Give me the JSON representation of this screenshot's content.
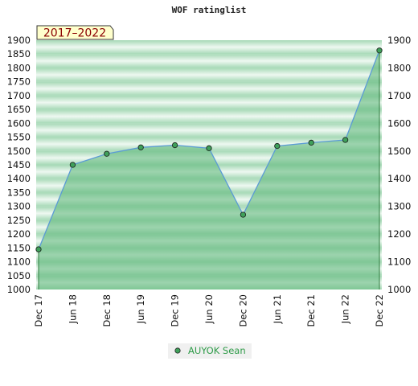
{
  "chart_data": {
    "type": "area",
    "title": "WOF ratinglist",
    "badge": "2017–2022",
    "xlabel": "",
    "ylabel": "",
    "categories": [
      "Dec 17",
      "Jun 18",
      "Dec 18",
      "Jun 19",
      "Dec 19",
      "Jun 20",
      "Dec 20",
      "Jun 21",
      "Dec 21",
      "Jun 22",
      "Dec 22"
    ],
    "series": [
      {
        "name": "AUYOK Sean",
        "values": [
          1145,
          1450,
          1490,
          1513,
          1521,
          1510,
          1270,
          1518,
          1530,
          1540,
          1863
        ]
      }
    ],
    "ylim_left": [
      1000,
      1900
    ],
    "ylim_right": [
      1000,
      1900
    ],
    "left_ticks": [
      1000,
      1050,
      1100,
      1150,
      1200,
      1250,
      1300,
      1350,
      1400,
      1450,
      1500,
      1550,
      1600,
      1650,
      1700,
      1750,
      1800,
      1850,
      1900
    ],
    "right_ticks": [
      1000,
      1100,
      1200,
      1300,
      1400,
      1500,
      1600,
      1700,
      1800,
      1900
    ],
    "legend_position": "bottom-center",
    "colors": {
      "line": "#5b9bd5",
      "point": "#3fa05a",
      "fill": "#66bb80",
      "band_dark": "#a6d9b6",
      "band_light": "#eef8f1",
      "badge_bg": "#ffffcc",
      "legend_text": "#2e9b48"
    }
  }
}
